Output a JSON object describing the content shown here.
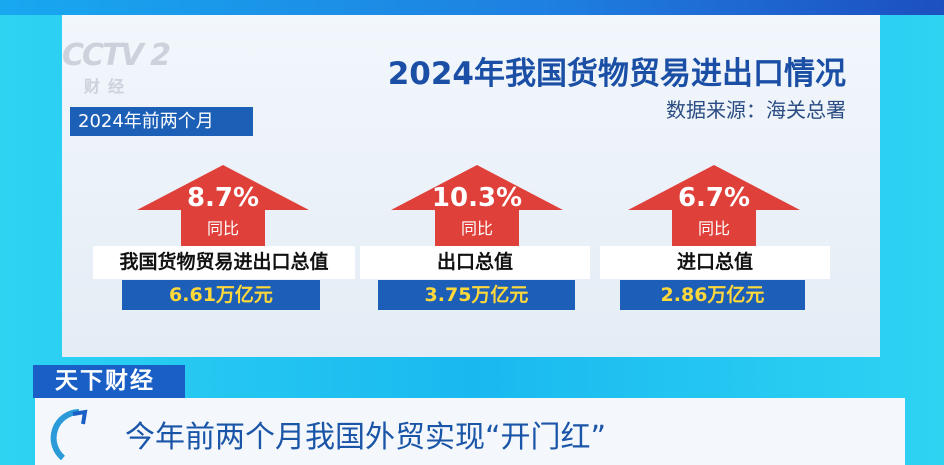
{
  "logo": {
    "text": "CCTV 2",
    "subtext": "财经"
  },
  "infographic": {
    "title": "2024年我国货物贸易进出口情况",
    "source": "数据来源：海关总署",
    "period": "2024年前两个月",
    "arrow_color": "#e0403a",
    "items": [
      {
        "pct": "8.7%",
        "yoy": "同比",
        "label": "我国货物贸易进出口总值",
        "value": "6.61万亿元"
      },
      {
        "pct": "10.3%",
        "yoy": "同比",
        "label": "出口总值",
        "value": "3.75万亿元"
      },
      {
        "pct": "6.7%",
        "yoy": "同比",
        "label": "进口总值",
        "value": "2.86万亿元"
      }
    ]
  },
  "lower_third": {
    "program": "天下财经",
    "headline": "今年前两个月我国外贸实现“开门红”"
  }
}
